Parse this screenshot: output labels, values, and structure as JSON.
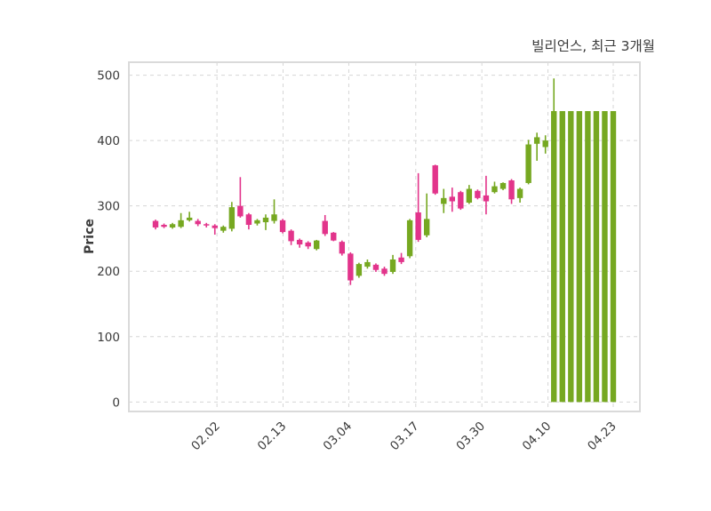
{
  "title": "빌리언스, 최근 3개월",
  "chart_data": {
    "type": "candlestick",
    "title": "빌리언스, 최근 3개월",
    "xlabel": "",
    "ylabel": "Price",
    "yticks": [
      0,
      100,
      200,
      300,
      400,
      500
    ],
    "ylim": [
      -14.5,
      519.8
    ],
    "grid": "dashed-both-axes",
    "legend": "none",
    "xticks": [
      {
        "label": "02.02",
        "index": 7.25
      },
      {
        "label": "02.13",
        "index": 15.05
      },
      {
        "label": "03.04",
        "index": 22.8
      },
      {
        "label": "03.17",
        "index": 30.7
      },
      {
        "label": "03.30",
        "index": 38.5
      },
      {
        "label": "04.10",
        "index": 46.3
      },
      {
        "label": "04.23",
        "index": 54
      }
    ],
    "colors": {
      "up": "#76a821",
      "down": "#e2348b",
      "grid": "#d6d6d6",
      "spine": "#dadada",
      "axis_text": "#3b3b3b",
      "background": "#ffffff"
    },
    "candles_format": [
      "open",
      "high",
      "low",
      "close"
    ],
    "candles": [
      [
        277,
        279,
        264,
        267
      ],
      [
        271,
        273,
        266,
        268
      ],
      [
        267,
        274,
        265,
        272
      ],
      [
        268,
        289,
        266,
        278
      ],
      [
        278,
        291,
        276,
        282
      ],
      [
        277,
        280,
        269,
        272
      ],
      [
        272,
        274,
        267,
        270
      ],
      [
        270,
        272,
        256,
        266
      ],
      [
        262,
        270,
        259,
        268
      ],
      [
        265,
        306,
        261,
        298
      ],
      [
        300,
        344,
        282,
        284
      ],
      [
        287,
        289,
        264,
        271
      ],
      [
        273,
        280,
        270,
        278
      ],
      [
        275,
        287,
        263,
        282
      ],
      [
        277,
        310,
        273,
        287
      ],
      [
        278,
        280,
        258,
        260
      ],
      [
        262,
        264,
        240,
        246
      ],
      [
        248,
        250,
        236,
        241
      ],
      [
        244,
        246,
        234,
        238
      ],
      [
        234,
        248,
        232,
        247
      ],
      [
        277,
        286,
        254,
        257
      ],
      [
        259,
        260,
        246,
        247
      ],
      [
        245,
        247,
        224,
        227
      ],
      [
        227,
        229,
        179,
        186
      ],
      [
        193,
        213,
        190,
        211
      ],
      [
        207,
        218,
        204,
        214
      ],
      [
        210,
        212,
        199,
        202
      ],
      [
        204,
        207,
        193,
        196
      ],
      [
        199,
        225,
        196,
        218
      ],
      [
        221,
        228,
        211,
        214
      ],
      [
        223,
        280,
        220,
        278
      ],
      [
        290,
        350,
        245,
        248
      ],
      [
        255,
        319,
        252,
        280
      ],
      [
        362,
        363,
        317,
        319
      ],
      [
        303,
        326,
        289,
        312
      ],
      [
        314,
        328,
        291,
        307
      ],
      [
        321,
        323,
        294,
        296
      ],
      [
        305,
        332,
        303,
        326
      ],
      [
        323,
        325,
        310,
        312
      ],
      [
        316,
        346,
        287,
        307
      ],
      [
        321,
        337,
        319,
        330
      ],
      [
        326,
        336,
        324,
        335
      ],
      [
        339,
        341,
        303,
        310
      ],
      [
        312,
        328,
        305,
        326
      ],
      [
        335,
        401,
        333,
        394
      ],
      [
        395,
        412,
        369,
        405
      ],
      [
        390,
        408,
        380,
        400
      ],
      [
        0,
        495,
        0,
        445
      ],
      [
        0,
        445,
        0,
        445
      ],
      [
        0,
        445,
        0,
        445
      ],
      [
        0,
        445,
        0,
        445
      ],
      [
        0,
        445,
        0,
        445
      ],
      [
        0,
        445,
        0,
        445
      ],
      [
        0,
        445,
        0,
        445
      ],
      [
        0,
        445,
        0,
        445
      ]
    ]
  }
}
